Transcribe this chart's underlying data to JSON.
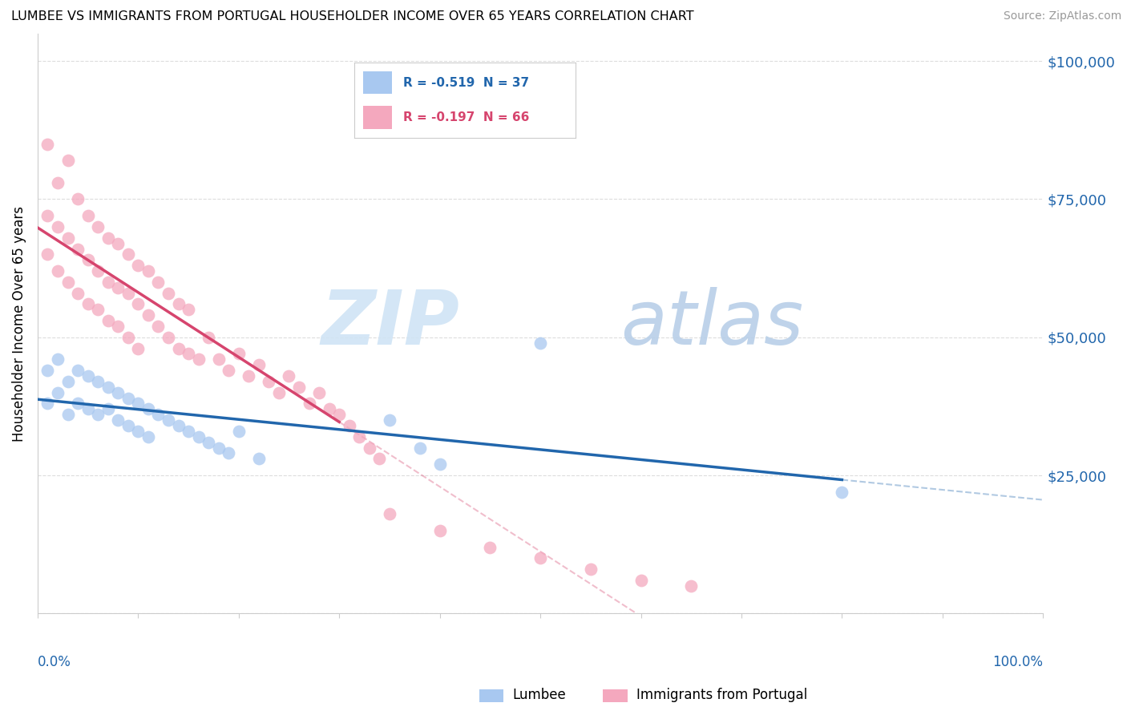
{
  "title": "LUMBEE VS IMMIGRANTS FROM PORTUGAL HOUSEHOLDER INCOME OVER 65 YEARS CORRELATION CHART",
  "source": "Source: ZipAtlas.com",
  "ylabel": "Householder Income Over 65 years",
  "legend_blue_label": "Lumbee",
  "legend_pink_label": "Immigrants from Portugal",
  "legend_blue_text": "R = -0.519  N = 37",
  "legend_pink_text": "R = -0.197  N = 66",
  "blue_color": "#a8c8f0",
  "pink_color": "#f4a8be",
  "blue_line_color": "#2166ac",
  "pink_line_color": "#d6456e",
  "watermark_zip": "ZIP",
  "watermark_atlas": "atlas",
  "xlim": [
    0,
    100
  ],
  "ylim": [
    0,
    105000
  ],
  "yticks": [
    0,
    25000,
    50000,
    75000,
    100000
  ],
  "ytick_labels": [
    "",
    "$25,000",
    "$50,000",
    "$75,000",
    "$100,000"
  ],
  "blue_scatter_x": [
    1,
    1,
    2,
    2,
    3,
    3,
    4,
    4,
    5,
    5,
    6,
    6,
    7,
    7,
    8,
    8,
    9,
    9,
    10,
    10,
    11,
    11,
    12,
    13,
    14,
    15,
    16,
    17,
    18,
    19,
    20,
    22,
    35,
    38,
    40,
    80,
    50
  ],
  "blue_scatter_y": [
    44000,
    38000,
    46000,
    40000,
    42000,
    36000,
    44000,
    38000,
    43000,
    37000,
    42000,
    36000,
    41000,
    37000,
    40000,
    35000,
    39000,
    34000,
    38000,
    33000,
    37000,
    32000,
    36000,
    35000,
    34000,
    33000,
    32000,
    31000,
    30000,
    29000,
    33000,
    28000,
    35000,
    30000,
    27000,
    22000,
    49000
  ],
  "pink_scatter_x": [
    1,
    1,
    1,
    2,
    2,
    2,
    3,
    3,
    3,
    4,
    4,
    4,
    5,
    5,
    5,
    6,
    6,
    6,
    7,
    7,
    7,
    8,
    8,
    8,
    9,
    9,
    9,
    10,
    10,
    10,
    11,
    11,
    12,
    12,
    13,
    13,
    14,
    14,
    15,
    15,
    16,
    17,
    18,
    19,
    20,
    21,
    22,
    23,
    24,
    25,
    26,
    27,
    28,
    29,
    30,
    31,
    32,
    33,
    34,
    35,
    40,
    45,
    50,
    55,
    60,
    65
  ],
  "pink_scatter_y": [
    85000,
    72000,
    65000,
    78000,
    70000,
    62000,
    82000,
    68000,
    60000,
    75000,
    66000,
    58000,
    72000,
    64000,
    56000,
    70000,
    62000,
    55000,
    68000,
    60000,
    53000,
    67000,
    59000,
    52000,
    65000,
    58000,
    50000,
    63000,
    56000,
    48000,
    62000,
    54000,
    60000,
    52000,
    58000,
    50000,
    56000,
    48000,
    55000,
    47000,
    46000,
    50000,
    46000,
    44000,
    47000,
    43000,
    45000,
    42000,
    40000,
    43000,
    41000,
    38000,
    40000,
    37000,
    36000,
    34000,
    32000,
    30000,
    28000,
    18000,
    15000,
    12000,
    10000,
    8000,
    6000,
    5000
  ]
}
